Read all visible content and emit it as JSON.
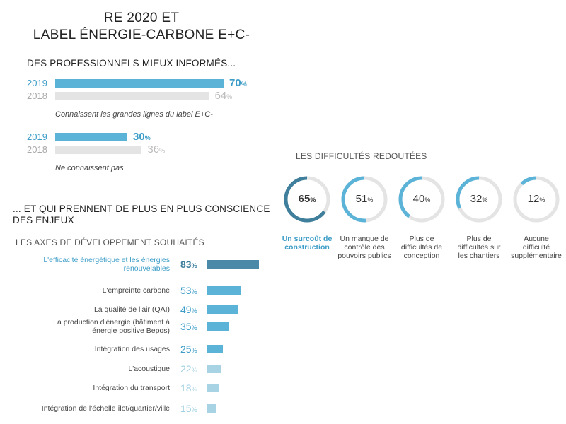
{
  "title_line1": "RE 2020 ET",
  "title_line2": "LABEL ÉNERGIE-CARBONE E+C-",
  "section1_title": "DES PROFESSIONNELS MIEUX INFORMÉS...",
  "section2_title_line1": "... ET QUI PRENNENT DE PLUS EN PLUS CONSCIENCE",
  "section2_title_line2": "DES ENJEUX",
  "axes_title": "LES AXES DE DÉVELOPPEMENT SOUHAITÉS",
  "difficulties_title": "LES DIFFICULTÉS REDOUTÉES",
  "percent_symbol": "%",
  "colors": {
    "accent": "#5bb4d8",
    "accent_dark": "#3f7f9c",
    "light_gray": "#e4e4e4",
    "gray_text": "#aaaaaa",
    "blue_text": "#3d9dc7"
  },
  "chart_data": [
    {
      "type": "bar",
      "categories": [
        "2019",
        "2018"
      ],
      "values": [
        70,
        64
      ],
      "caption": "Connaissent les grandes lignes du label E+C-"
    },
    {
      "type": "bar",
      "categories": [
        "2019",
        "2018"
      ],
      "values": [
        30,
        36
      ],
      "caption": "Ne connaissent pas"
    },
    {
      "type": "pie",
      "title": "LES DIFFICULTÉS REDOUTÉES",
      "categories": [
        "Un surcoût de construction",
        "Un manque de contrôle des pouvoirs publics",
        "Plus de difficultés de conception",
        "Plus de difficultés sur les chantiers",
        "Aucune difficulté supplémentaire"
      ],
      "values": [
        65,
        51,
        40,
        32,
        12
      ]
    },
    {
      "type": "bar",
      "title": "LES AXES DE DÉVELOPPEMENT SOUHAITÉS",
      "categories": [
        "L'efficacité énergétique et les énergies renouvelables",
        "L'empreinte carbone",
        "La qualité de l'air (QAI)",
        "La production d'énergie (bâtiment à énergie positive Bepos)",
        "Intégration des usages",
        "L'acoustique",
        "Intégration du transport",
        "Intégration de l'échelle îlot/quartier/ville"
      ],
      "values": [
        83,
        53,
        49,
        35,
        25,
        22,
        18,
        15
      ]
    }
  ]
}
